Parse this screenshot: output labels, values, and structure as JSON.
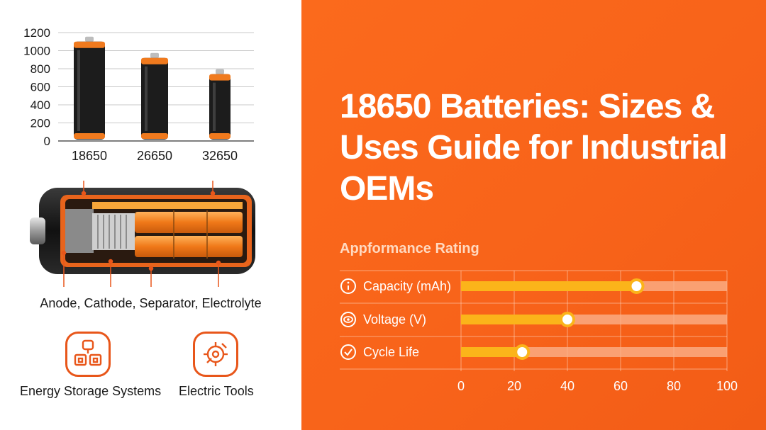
{
  "title": "18650 Batteries: Sizes & Uses Guide for Industrial OEMs",
  "components_caption": "Anode, Cathode, Separator, Electrolyte",
  "applications": [
    {
      "label": "Energy Storage Systems",
      "icon": "energy-storage-icon"
    },
    {
      "label": "Electric Tools",
      "icon": "electric-tools-icon"
    }
  ],
  "colors": {
    "brand_orange": "#f8631a",
    "battery_black": "#1c1c1c",
    "battery_band": "#f07a1e",
    "rating_bar": "#fbb41a",
    "rating_track": "#fbb08a"
  },
  "chart_data": [
    {
      "type": "bar",
      "title": "",
      "xlabel": "",
      "ylabel": "",
      "categories": [
        "18650",
        "26650",
        "32650"
      ],
      "values": [
        1100,
        920,
        740
      ],
      "ylim": [
        0,
        1200
      ],
      "yticks": [
        0,
        200,
        400,
        600,
        800,
        1000,
        1200
      ],
      "grid": true,
      "mark_style": "battery"
    },
    {
      "type": "bar",
      "orientation": "horizontal",
      "title": "Appformance Rating",
      "xlabel": "",
      "ylabel": "",
      "categories": [
        {
          "label": "Capacity (mAh)",
          "icon": "info-icon"
        },
        {
          "label": "Voltage (V)",
          "icon": "eye-icon"
        },
        {
          "label": "Cycle Life",
          "icon": "check-icon"
        }
      ],
      "values": [
        66,
        40,
        23
      ],
      "xlim": [
        0,
        100
      ],
      "xticks": [
        0,
        20,
        40,
        60,
        80,
        100
      ],
      "grid": true
    }
  ]
}
